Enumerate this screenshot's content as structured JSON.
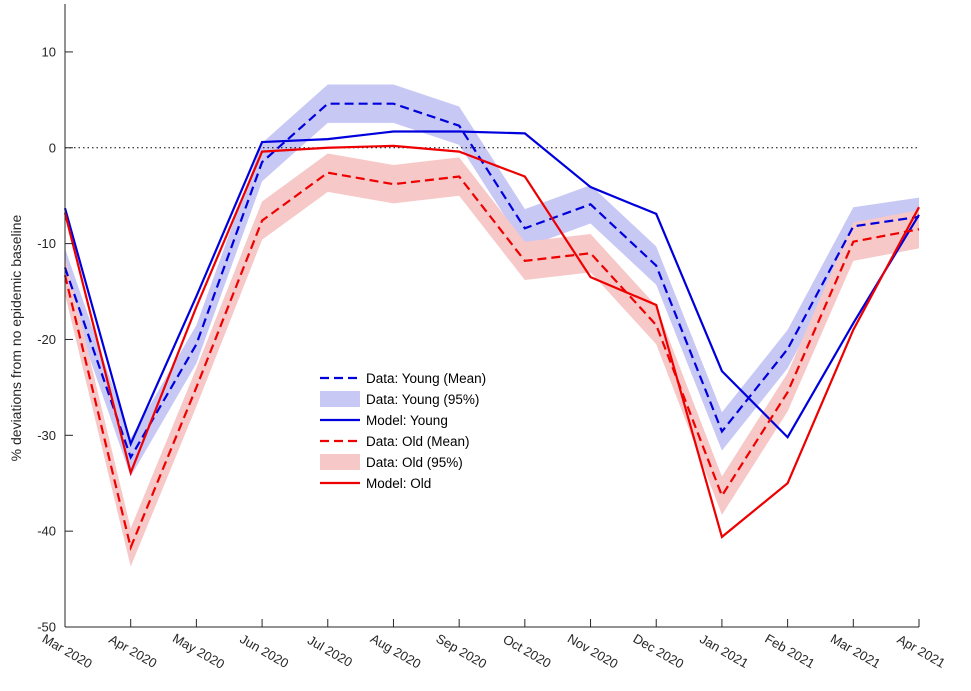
{
  "chart_data": {
    "type": "line",
    "title": "",
    "xlabel": "",
    "ylabel": "% deviations from no epidemic baseline",
    "x": [
      "Mar 2020",
      "Apr 2020",
      "May 2020",
      "Jun 2020",
      "Jul 2020",
      "Aug 2020",
      "Sep 2020",
      "Oct 2020",
      "Nov 2020",
      "Dec 2020",
      "Jan 2021",
      "Feb 2021",
      "Mar 2021",
      "Apr 2021"
    ],
    "ylim": [
      -50,
      15
    ],
    "yticks": [
      -50,
      -40,
      -30,
      -20,
      -10,
      0,
      10
    ],
    "ytick_labels": [
      "-50",
      "-40",
      "-30",
      "-20",
      "-10",
      "0",
      "10"
    ],
    "grid": false,
    "zero_line": true,
    "legend_position": "center-left",
    "series": [
      {
        "name": "Data: Young (Mean)",
        "style": "dashed",
        "color": "#0000dd",
        "values": [
          -12.5,
          -32.3,
          -20.5,
          -1.5,
          4.6,
          4.6,
          2.3,
          -8.4,
          -5.9,
          -12.3,
          -29.6,
          -21.0,
          -8.2,
          -7.2
        ]
      },
      {
        "name": "Data: Young (95%)",
        "style": "band",
        "color": "#c8c8f5",
        "width": 2.0,
        "values": [
          -12.5,
          -32.3,
          -20.5,
          -1.5,
          4.6,
          4.6,
          2.3,
          -8.4,
          -5.9,
          -12.3,
          -29.6,
          -21.0,
          -8.2,
          -7.2
        ]
      },
      {
        "name": "Model: Young",
        "style": "solid",
        "color": "#0000dd",
        "values": [
          -6.3,
          -30.9,
          -15.5,
          0.6,
          0.9,
          1.7,
          1.7,
          1.5,
          -4.1,
          -6.9,
          -23.3,
          -30.2,
          -18.3,
          -7.0
        ]
      },
      {
        "name": "Data: Old (Mean)",
        "style": "dashed",
        "color": "#ee0000",
        "values": [
          -13.3,
          -41.7,
          -25.0,
          -7.6,
          -2.6,
          -3.8,
          -3.0,
          -11.8,
          -11.0,
          -18.5,
          -36.3,
          -25.5,
          -9.8,
          -8.5
        ]
      },
      {
        "name": "Data: Old (95%)",
        "style": "band",
        "color": "#f7c8c8",
        "width": 2.0,
        "values": [
          -13.3,
          -41.7,
          -25.0,
          -7.6,
          -2.6,
          -3.8,
          -3.0,
          -11.8,
          -11.0,
          -18.5,
          -36.3,
          -25.5,
          -9.8,
          -8.5
        ]
      },
      {
        "name": "Model: Old",
        "style": "solid",
        "color": "#ee0000",
        "values": [
          -6.8,
          -33.9,
          -16.6,
          -0.4,
          0.0,
          0.2,
          -0.4,
          -3.0,
          -13.5,
          -16.4,
          -40.6,
          -35.0,
          -19.0,
          -6.2
        ]
      }
    ]
  }
}
